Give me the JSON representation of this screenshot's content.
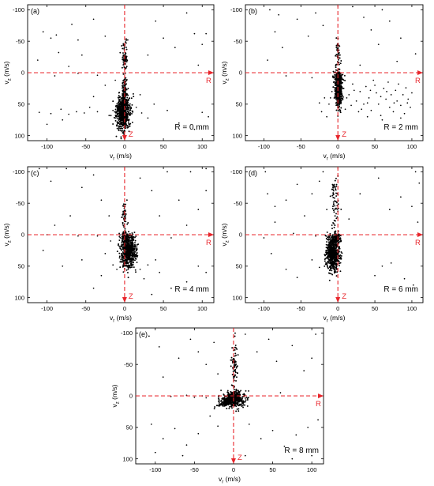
{
  "figure": {
    "accent_color": "#e8252b",
    "point_color": "#000000"
  },
  "chart_data": [
    {
      "type": "scatter",
      "panel_label": "(a)",
      "annotation": "R = 0 mm",
      "xlabel_main": "v",
      "xlabel_sub": "r",
      "xlabel_unit": " (m/s)",
      "ylabel_main": "v",
      "ylabel_sub": "z",
      "ylabel_unit": " (m/s)",
      "xlim": [
        -125,
        115
      ],
      "ylim": [
        108,
        -108
      ],
      "y_inverted": true,
      "xticks": [
        -100,
        -50,
        0,
        50,
        100
      ],
      "yticks": [
        -100,
        -50,
        0,
        50,
        100
      ],
      "grid": false,
      "axis_arrow_labels": {
        "horizontal": "R",
        "vertical": "Z"
      },
      "clusters": [
        {
          "shape": "ellipse",
          "center": [
            -2,
            63
          ],
          "spread": [
            4.5,
            14
          ],
          "count": 650
        },
        {
          "shape": "ellipse",
          "center": [
            0,
            30
          ],
          "spread": [
            1.6,
            14
          ],
          "count": 120
        },
        {
          "shape": "ellipse",
          "center": [
            0,
            -28
          ],
          "spread": [
            1.8,
            12
          ],
          "count": 70
        }
      ],
      "sparse_points": [
        [
          -105,
          -65
        ],
        [
          -88,
          -60
        ],
        [
          -68,
          -77
        ],
        [
          -40,
          -85
        ],
        [
          -85,
          -32
        ],
        [
          -60,
          -52
        ],
        [
          -25,
          -58
        ],
        [
          -72,
          -10
        ],
        [
          -95,
          -55
        ],
        [
          -55,
          -28
        ],
        [
          -112,
          -20
        ],
        [
          40,
          -82
        ],
        [
          50,
          -55
        ],
        [
          80,
          -95
        ],
        [
          90,
          -62
        ],
        [
          100,
          -45
        ],
        [
          105,
          -62
        ],
        [
          30,
          -28
        ],
        [
          65,
          -40
        ],
        [
          95,
          -12
        ],
        [
          -110,
          63
        ],
        [
          -95,
          65
        ],
        [
          -82,
          58
        ],
        [
          -72,
          66
        ],
        [
          -62,
          62
        ],
        [
          -52,
          64
        ],
        [
          -45,
          55
        ],
        [
          -35,
          62
        ],
        [
          -20,
          68
        ],
        [
          -12,
          72
        ],
        [
          -80,
          75
        ],
        [
          -100,
          82
        ],
        [
          -15,
          60
        ],
        [
          15,
          55
        ],
        [
          22,
          64
        ],
        [
          30,
          72
        ],
        [
          55,
          60
        ],
        [
          70,
          80
        ],
        [
          90,
          90
        ],
        [
          100,
          63
        ],
        [
          108,
          70
        ],
        [
          -90,
          5
        ],
        [
          -60,
          1
        ],
        [
          -35,
          4
        ],
        [
          -25,
          20
        ],
        [
          -12,
          12
        ],
        [
          20,
          35
        ],
        [
          38,
          50
        ],
        [
          -40,
          38
        ]
      ]
    },
    {
      "type": "scatter",
      "panel_label": "(b)",
      "annotation": "R = 2 mm",
      "xlabel_main": "v",
      "xlabel_sub": "r",
      "xlabel_unit": " (m/s)",
      "ylabel_main": "v",
      "ylabel_sub": "z",
      "ylabel_unit": " (m/s)",
      "xlim": [
        -125,
        115
      ],
      "ylim": [
        108,
        -108
      ],
      "y_inverted": true,
      "xticks": [
        -100,
        -50,
        0,
        50,
        100
      ],
      "yticks": [
        -100,
        -50,
        0,
        50,
        100
      ],
      "grid": false,
      "axis_arrow_labels": {
        "horizontal": "R",
        "vertical": "Z"
      },
      "clusters": [
        {
          "shape": "ellipse",
          "center": [
            1,
            28
          ],
          "spread": [
            2.2,
            13
          ],
          "count": 560
        },
        {
          "shape": "ellipse",
          "center": [
            0,
            5
          ],
          "spread": [
            3.5,
            3.5
          ],
          "count": 80
        },
        {
          "shape": "ellipse",
          "center": [
            0,
            -30
          ],
          "spread": [
            1.5,
            12
          ],
          "count": 45
        }
      ],
      "sparse_points": [
        [
          8,
          25
        ],
        [
          15,
          35
        ],
        [
          20,
          18
        ],
        [
          25,
          45
        ],
        [
          30,
          30
        ],
        [
          32,
          58
        ],
        [
          38,
          22
        ],
        [
          42,
          40
        ],
        [
          45,
          60
        ],
        [
          48,
          12
        ],
        [
          52,
          32
        ],
        [
          55,
          50
        ],
        [
          58,
          68
        ],
        [
          62,
          25
        ],
        [
          65,
          42
        ],
        [
          68,
          15
        ],
        [
          70,
          55
        ],
        [
          72,
          35
        ],
        [
          75,
          62
        ],
        [
          78,
          28
        ],
        [
          80,
          45
        ],
        [
          82,
          18
        ],
        [
          85,
          52
        ],
        [
          88,
          35
        ],
        [
          90,
          65
        ],
        [
          92,
          24
        ],
        [
          95,
          42
        ],
        [
          98,
          55
        ],
        [
          100,
          32
        ],
        [
          40,
          70
        ],
        [
          60,
          75
        ],
        [
          85,
          72
        ],
        [
          50,
          20
        ],
        [
          35,
          50
        ],
        [
          28,
          62
        ],
        [
          18,
          52
        ],
        [
          10,
          58
        ],
        [
          12,
          40
        ],
        [
          22,
          28
        ],
        [
          44,
          28
        ],
        [
          66,
          30
        ],
        [
          76,
          48
        ],
        [
          94,
          48
        ],
        [
          58,
          38
        ],
        [
          40,
          48
        ],
        [
          -8,
          30
        ],
        [
          -12,
          50
        ],
        [
          -18,
          40
        ],
        [
          -22,
          62
        ],
        [
          -15,
          70
        ],
        [
          -25,
          48
        ],
        [
          -10,
          40
        ],
        [
          -105,
          -108
        ],
        [
          -92,
          -100
        ],
        [
          -80,
          -92
        ],
        [
          -65,
          -108
        ],
        [
          -30,
          -95
        ],
        [
          -20,
          -75
        ],
        [
          -40,
          -58
        ],
        [
          -55,
          -85
        ],
        [
          -85,
          -65
        ],
        [
          -75,
          -40
        ],
        [
          -95,
          -20
        ],
        [
          20,
          -105
        ],
        [
          35,
          -88
        ],
        [
          45,
          -68
        ],
        [
          60,
          -100
        ],
        [
          70,
          -82
        ],
        [
          85,
          -55
        ],
        [
          95,
          -108
        ],
        [
          105,
          -30
        ],
        [
          80,
          -18
        ],
        [
          55,
          -45
        ],
        [
          -70,
          5
        ],
        [
          -35,
          8
        ],
        [
          30,
          -12
        ]
      ]
    },
    {
      "type": "scatter",
      "panel_label": "(c)",
      "annotation": "R = 4 mm",
      "xlabel_main": "v",
      "xlabel_sub": "r",
      "xlabel_unit": " (m/s)",
      "ylabel_main": "v",
      "ylabel_sub": "z",
      "ylabel_unit": " (m/s)",
      "xlim": [
        -125,
        115
      ],
      "ylim": [
        108,
        -108
      ],
      "y_inverted": true,
      "xticks": [
        -100,
        -50,
        0,
        50,
        100
      ],
      "yticks": [
        -100,
        -50,
        0,
        50,
        100
      ],
      "grid": false,
      "axis_arrow_labels": {
        "horizontal": "R",
        "vertical": "Z"
      },
      "clusters": [
        {
          "shape": "ellipse",
          "center": [
            5,
            26
          ],
          "spread": [
            5,
            13
          ],
          "count": 620
        },
        {
          "shape": "ellipse",
          "center": [
            0,
            5
          ],
          "spread": [
            3,
            4
          ],
          "count": 90
        },
        {
          "shape": "ellipse",
          "center": [
            0,
            -35
          ],
          "spread": [
            1.5,
            13
          ],
          "count": 45
        }
      ],
      "sparse_points": [
        [
          -110,
          -105
        ],
        [
          -95,
          -85
        ],
        [
          -75,
          -105
        ],
        [
          -55,
          -75
        ],
        [
          -40,
          -95
        ],
        [
          -30,
          -55
        ],
        [
          -70,
          -30
        ],
        [
          -90,
          -15
        ],
        [
          -20,
          -30
        ],
        [
          20,
          -90
        ],
        [
          35,
          -70
        ],
        [
          55,
          -100
        ],
        [
          70,
          -55
        ],
        [
          85,
          -100
        ],
        [
          95,
          -40
        ],
        [
          105,
          -70
        ],
        [
          105,
          -105
        ],
        [
          80,
          -15
        ],
        [
          45,
          -30
        ],
        [
          -105,
          25
        ],
        [
          -80,
          50
        ],
        [
          -55,
          40
        ],
        [
          -30,
          65
        ],
        [
          -15,
          48
        ],
        [
          -10,
          55
        ],
        [
          -25,
          30
        ],
        [
          25,
          70
        ],
        [
          45,
          60
        ],
        [
          60,
          85
        ],
        [
          80,
          75
        ],
        [
          95,
          50
        ],
        [
          105,
          60
        ],
        [
          35,
          95
        ],
        [
          -40,
          85
        ],
        [
          20,
          55
        ],
        [
          30,
          48
        ],
        [
          40,
          40
        ],
        [
          -100,
          0
        ],
        [
          -60,
          2
        ],
        [
          -35,
          2
        ],
        [
          -18,
          10
        ],
        [
          60,
          5
        ]
      ]
    },
    {
      "type": "scatter",
      "panel_label": "(d)",
      "annotation": "R = 6 mm",
      "xlabel_main": "v",
      "xlabel_sub": "r",
      "xlabel_unit": " (m/s)",
      "ylabel_main": "v",
      "ylabel_sub": "z",
      "ylabel_unit": " (m/s)",
      "xlim": [
        -125,
        115
      ],
      "ylim": [
        108,
        -108
      ],
      "y_inverted": true,
      "xticks": [
        -100,
        -50,
        0,
        50,
        100
      ],
      "yticks": [
        -100,
        -50,
        0,
        50,
        100
      ],
      "grid": false,
      "axis_arrow_labels": {
        "horizontal": "R",
        "vertical": "Z"
      },
      "clusters": [
        {
          "shape": "ellipse",
          "center": [
            -7,
            28
          ],
          "spread": [
            4.5,
            14
          ],
          "count": 640
        },
        {
          "shape": "ellipse",
          "center": [
            -2,
            5
          ],
          "spread": [
            3,
            4
          ],
          "count": 90
        },
        {
          "shape": "ellipse",
          "center": [
            -4,
            -55
          ],
          "spread": [
            3,
            22
          ],
          "count": 65
        }
      ],
      "sparse_points": [
        [
          -108,
          -108
        ],
        [
          -98,
          -100
        ],
        [
          -85,
          -108
        ],
        [
          -75,
          -108
        ],
        [
          -60,
          -108
        ],
        [
          -50,
          -108
        ],
        [
          -40,
          -108
        ],
        [
          -30,
          -108
        ],
        [
          -20,
          -100
        ],
        [
          10,
          -108
        ],
        [
          20,
          -108
        ],
        [
          35,
          -108
        ],
        [
          50,
          -108
        ],
        [
          60,
          -108
        ],
        [
          72,
          -108
        ],
        [
          85,
          -108
        ],
        [
          95,
          -108
        ],
        [
          105,
          -100
        ],
        [
          110,
          -82
        ],
        [
          -95,
          -65
        ],
        [
          -85,
          -45
        ],
        [
          -70,
          -55
        ],
        [
          -55,
          -80
        ],
        [
          -45,
          -30
        ],
        [
          -35,
          -65
        ],
        [
          -25,
          -85
        ],
        [
          -15,
          -40
        ],
        [
          -85,
          -20
        ],
        [
          30,
          -65
        ],
        [
          55,
          -90
        ],
        [
          70,
          -40
        ],
        [
          85,
          -60
        ],
        [
          100,
          -45
        ],
        [
          108,
          -20
        ],
        [
          15,
          -25
        ],
        [
          -90,
          30
        ],
        [
          -70,
          55
        ],
        [
          -55,
          68
        ],
        [
          -35,
          40
        ],
        [
          -25,
          52
        ],
        [
          50,
          65
        ],
        [
          60,
          50
        ],
        [
          72,
          45
        ],
        [
          90,
          70
        ],
        [
          102,
          80
        ],
        [
          -100,
          5
        ],
        [
          -60,
          -2
        ],
        [
          -30,
          2
        ]
      ]
    },
    {
      "type": "scatter",
      "panel_label": "(e)",
      "annotation": "R = 8 mm",
      "xlabel_main": "v",
      "xlabel_sub": "r",
      "xlabel_unit": " (m/s)",
      "ylabel_main": "v",
      "ylabel_sub": "z",
      "ylabel_unit": " (m/s)",
      "xlim": [
        -125,
        115
      ],
      "ylim": [
        108,
        -108
      ],
      "y_inverted": true,
      "xticks": [
        -100,
        -50,
        0,
        50,
        100
      ],
      "yticks": [
        -100,
        -50,
        0,
        50,
        100
      ],
      "grid": false,
      "axis_arrow_labels": {
        "horizontal": "R",
        "vertical": "Z"
      },
      "clusters": [
        {
          "shape": "ellipse",
          "center": [
            0,
            5
          ],
          "spread": [
            6.5,
            6
          ],
          "count": 520
        },
        {
          "shape": "ellipse",
          "center": [
            -12,
            10
          ],
          "spread": [
            5,
            4
          ],
          "count": 90
        },
        {
          "shape": "ellipse",
          "center": [
            1,
            -45
          ],
          "spread": [
            1.8,
            22
          ],
          "count": 70
        }
      ],
      "sparse_points": [
        [
          -108,
          -95
        ],
        [
          -95,
          -78
        ],
        [
          -82,
          -108
        ],
        [
          -70,
          -60
        ],
        [
          -55,
          -90
        ],
        [
          -45,
          -70
        ],
        [
          -35,
          -50
        ],
        [
          -25,
          -85
        ],
        [
          -20,
          -35
        ],
        [
          -90,
          -30
        ],
        [
          15,
          -98
        ],
        [
          30,
          -70
        ],
        [
          45,
          -90
        ],
        [
          55,
          -55
        ],
        [
          75,
          -80
        ],
        [
          90,
          -40
        ],
        [
          100,
          -60
        ],
        [
          105,
          -98
        ],
        [
          -105,
          45
        ],
        [
          -90,
          68
        ],
        [
          -75,
          52
        ],
        [
          -60,
          78
        ],
        [
          -45,
          60
        ],
        [
          -30,
          32
        ],
        [
          -20,
          48
        ],
        [
          20,
          45
        ],
        [
          35,
          68
        ],
        [
          50,
          55
        ],
        [
          65,
          80
        ],
        [
          80,
          62
        ],
        [
          95,
          50
        ],
        [
          108,
          38
        ],
        [
          -100,
          90
        ],
        [
          -65,
          95
        ],
        [
          15,
          95
        ],
        [
          40,
          108
        ],
        [
          75,
          100
        ],
        [
          100,
          95
        ],
        [
          -80,
          1
        ],
        [
          -60,
          -1
        ],
        [
          -50,
          2
        ],
        [
          -40,
          0
        ],
        [
          -35,
          3
        ],
        [
          60,
          -5
        ]
      ]
    }
  ]
}
